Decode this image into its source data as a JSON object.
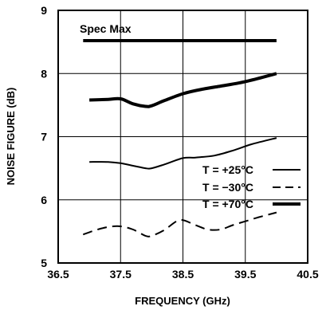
{
  "chart_data": {
    "type": "line",
    "xlabel": "FREQUENCY (GHz)",
    "ylabel": "NOISE FIGURE (dB)",
    "xlim": [
      36.5,
      40.5
    ],
    "ylim": [
      5,
      9
    ],
    "xticks": [
      36.5,
      37.5,
      38.5,
      39.5,
      40.5
    ],
    "xtick_labels": [
      "36.5",
      "37.5",
      "38.5",
      "39.5",
      "40.5"
    ],
    "yticks": [
      5,
      6,
      7,
      8,
      9
    ],
    "ytick_labels": [
      "5",
      "6",
      "7",
      "8",
      "9"
    ],
    "grid": true,
    "legend_position": "right",
    "annotation": {
      "text": "Spec Max",
      "line": {
        "x": [
          36.9,
          40.0
        ],
        "y": [
          8.52,
          8.52
        ]
      }
    },
    "series": [
      {
        "name": "T = +25°C",
        "style": "thin-solid",
        "x": [
          37.0,
          37.3,
          37.5,
          37.7,
          37.9,
          38.0,
          38.2,
          38.5,
          38.7,
          39.0,
          39.3,
          39.6,
          40.0
        ],
        "y": [
          6.6,
          6.6,
          6.58,
          6.54,
          6.5,
          6.5,
          6.56,
          6.66,
          6.67,
          6.7,
          6.78,
          6.88,
          6.98
        ]
      },
      {
        "name": "T = −30°C",
        "style": "dashed",
        "x": [
          36.9,
          37.1,
          37.3,
          37.5,
          37.7,
          37.9,
          38.0,
          38.2,
          38.45,
          38.7,
          38.9,
          39.1,
          39.3,
          39.5,
          39.7,
          40.0
        ],
        "y": [
          5.45,
          5.52,
          5.57,
          5.58,
          5.53,
          5.43,
          5.43,
          5.52,
          5.68,
          5.6,
          5.53,
          5.53,
          5.6,
          5.66,
          5.72,
          5.8
        ]
      },
      {
        "name": "T = +70°C",
        "style": "thick-solid",
        "x": [
          37.0,
          37.3,
          37.5,
          37.7,
          37.9,
          38.0,
          38.2,
          38.5,
          38.8,
          39.1,
          39.4,
          39.7,
          40.0
        ],
        "y": [
          7.58,
          7.59,
          7.6,
          7.52,
          7.48,
          7.49,
          7.57,
          7.68,
          7.75,
          7.8,
          7.85,
          7.92,
          8.0
        ]
      }
    ]
  }
}
